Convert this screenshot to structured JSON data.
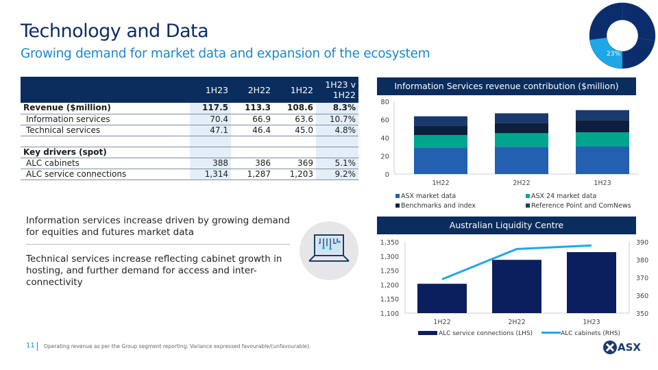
{
  "header": {
    "title": "Technology and Data",
    "subtitle": "Growing demand for market data and expansion of the ecosystem"
  },
  "donut": {
    "label": "23%",
    "share_percent": 23,
    "colors": {
      "highlight": "#1ea7e8",
      "base": "#0b2d6b"
    }
  },
  "table": {
    "columns": [
      "",
      "1H23",
      "2H22",
      "1H22",
      "1H23 v 1H22"
    ],
    "rows": [
      {
        "label": "Revenue ($million)",
        "values": [
          "117.5",
          "113.3",
          "108.6",
          "8.3%"
        ],
        "style": "bold"
      },
      {
        "label": "Information services",
        "values": [
          "70.4",
          "66.9",
          "63.6",
          "10.7%"
        ],
        "style": "sub"
      },
      {
        "label": "Technical services",
        "values": [
          "47.1",
          "46.4",
          "45.0",
          "4.8%"
        ],
        "style": "sub"
      },
      {
        "label": "",
        "values": [
          "",
          "",
          "",
          ""
        ],
        "style": "blank"
      },
      {
        "label": "Key drivers (spot)",
        "values": [
          "",
          "",
          "",
          ""
        ],
        "style": "bold"
      },
      {
        "label": "ALC cabinets",
        "values": [
          "388",
          "386",
          "369",
          "5.1%"
        ],
        "style": "sub"
      },
      {
        "label": "ALC service connections",
        "values": [
          "1,314",
          "1,287",
          "1,203",
          "9.2%"
        ],
        "style": "sub"
      }
    ]
  },
  "bullets": [
    "Information services increase driven by growing demand for equities and futures market data",
    "Technical services increase reflecting cabinet growth in hosting, and further demand for access and inter-connectivity"
  ],
  "icon": "laptop-circuit-icon",
  "footer": {
    "page": "11",
    "note": "Operating revenue as per the Group segment reporting. Variance expressed favourable/(unfavourable)."
  },
  "logo": "ASX",
  "chart_data": [
    {
      "type": "bar",
      "stacked": true,
      "title": "Information Services revenue contribution ($million)",
      "categories": [
        "1H22",
        "2H22",
        "1H23"
      ],
      "ylim": [
        0,
        80
      ],
      "yticks": [
        0,
        20,
        40,
        60,
        80
      ],
      "legend": "bottom",
      "series": [
        {
          "name": "ASX market data",
          "color": "#2360b0",
          "values": [
            29,
            30,
            30.5
          ]
        },
        {
          "name": "ASX 24 market data",
          "color": "#00a58e",
          "values": [
            14,
            15,
            15.5
          ]
        },
        {
          "name": "Benchmarks and index",
          "color": "#0c1f3f",
          "values": [
            10.3,
            11.4,
            13.4
          ]
        },
        {
          "name": "Reference Point and ComNews",
          "color": "#1a3a6e",
          "values": [
            10.3,
            10.5,
            11
          ]
        }
      ]
    },
    {
      "type": "bar+line",
      "title": "Australian Liquidity Centre",
      "categories": [
        "1H22",
        "2H22",
        "1H23"
      ],
      "ylim_left": [
        1100,
        1350
      ],
      "yticks_left": [
        "1,100",
        "1,150",
        "1,200",
        "1,250",
        "1,300",
        "1,350"
      ],
      "ylim_right": [
        350,
        390
      ],
      "yticks_right": [
        "350",
        "360",
        "370",
        "380",
        "390"
      ],
      "legend": "bottom",
      "series": [
        {
          "name": "ALC service connections (LHS)",
          "type": "bar",
          "axis": "left",
          "color": "#0b1f5e",
          "values": [
            1203,
            1287,
            1314
          ]
        },
        {
          "name": "ALC cabinets (RHS)",
          "type": "line",
          "axis": "right",
          "color": "#1ea7e8",
          "values": [
            369,
            386,
            388
          ]
        }
      ]
    }
  ]
}
